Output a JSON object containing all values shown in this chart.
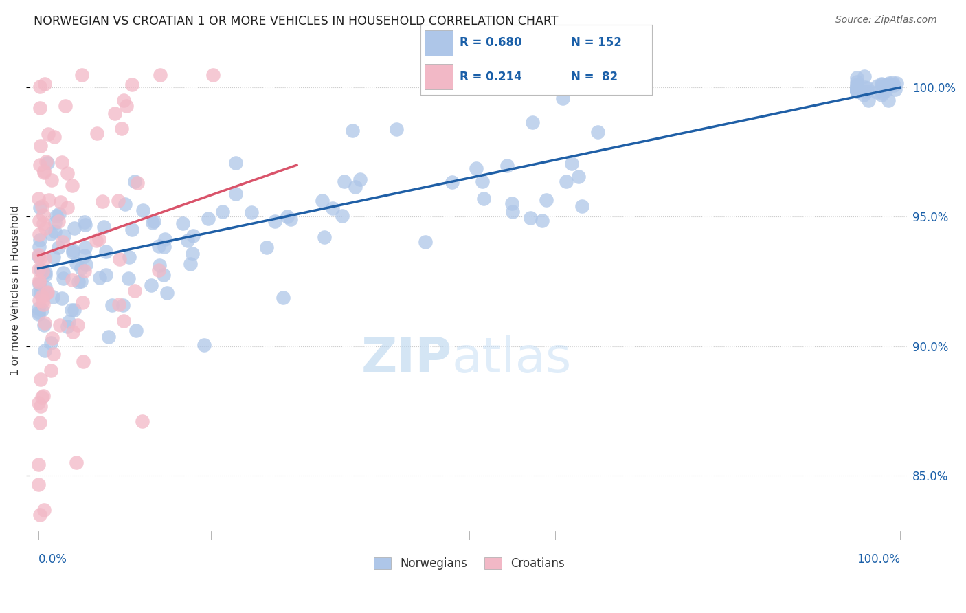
{
  "title": "NORWEGIAN VS CROATIAN 1 OR MORE VEHICLES IN HOUSEHOLD CORRELATION CHART",
  "source": "Source: ZipAtlas.com",
  "ylabel": "1 or more Vehicles in Household",
  "ytick_values": [
    85,
    90,
    95,
    100
  ],
  "ytick_labels": [
    "85.0%",
    "90.0%",
    "95.0%",
    "100.0%"
  ],
  "xlim": [
    -1,
    101
  ],
  "ylim": [
    82.5,
    101.8
  ],
  "legend_text_color": "#1a5fa8",
  "blue_color": "#aec6e8",
  "pink_color": "#f2b8c6",
  "blue_line_color": "#1f5fa6",
  "pink_line_color": "#d9536a",
  "axis_label_color": "#1a5fa8",
  "grid_color": "#cccccc",
  "title_color": "#222222",
  "source_color": "#666666",
  "watermark_color": "#d0e4f4",
  "watermark": "ZIPatlas",
  "legend_r_blue": "R = 0.680",
  "legend_n_blue": "N = 152",
  "legend_r_pink": "R = 0.214",
  "legend_n_pink": "N =  82",
  "blue_trend_x0": 0,
  "blue_trend_y0": 93.0,
  "blue_trend_x1": 100,
  "blue_trend_y1": 100.0,
  "pink_trend_x0": 0,
  "pink_trend_y0": 93.5,
  "pink_trend_x1": 30,
  "pink_trend_y1": 97.0
}
